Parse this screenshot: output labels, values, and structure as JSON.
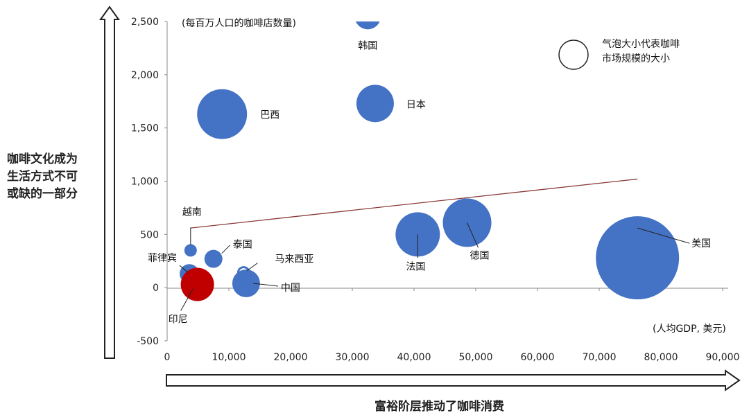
{
  "chart_data": {
    "type": "scatter",
    "title": "",
    "ylabel_note": "(每百万人口的咖啡店数量)",
    "xlabel_note": "(人均GDP, 美元)",
    "xlim": [
      0,
      90000
    ],
    "ylim": [
      -500,
      2500
    ],
    "x_ticks": [
      "0",
      "10,000",
      "20,000",
      "30,000",
      "40,000",
      "50,000",
      "60,000",
      "70,000",
      "80,000",
      "90,000"
    ],
    "y_ticks": [
      "2,500",
      "2,000",
      "1,500",
      "1,000",
      "500",
      "0",
      "-500"
    ],
    "size_legend": {
      "text_line1": "气泡大小代表咖啡",
      "text_line2": "市场规模的大小"
    },
    "points": [
      {
        "label": "韩国",
        "x": 32500,
        "y": 2550,
        "size": 19,
        "color": "#4472C4"
      },
      {
        "label": "日本",
        "x": 33700,
        "y": 1730,
        "size": 27,
        "color": "#4472C4"
      },
      {
        "label": "巴西",
        "x": 8900,
        "y": 1630,
        "size": 36,
        "color": "#4472C4"
      },
      {
        "label": "越南",
        "x": 3800,
        "y": 350,
        "size": 9,
        "color": "#4472C4"
      },
      {
        "label": "泰国",
        "x": 7500,
        "y": 270,
        "size": 13,
        "color": "#4472C4"
      },
      {
        "label": "菲律宾",
        "x": 3600,
        "y": 130,
        "size": 14,
        "color": "#4472C4"
      },
      {
        "label": "马来西亚",
        "x": 12400,
        "y": 140,
        "size": 8,
        "color": "#ffffff"
      },
      {
        "label": "中国",
        "x": 12800,
        "y": 40,
        "size": 20,
        "color": "#4472C4"
      },
      {
        "label": "印尼",
        "x": 4900,
        "y": 30,
        "size": 24,
        "color": "#C00000"
      },
      {
        "label": "法国",
        "x": 40600,
        "y": 500,
        "size": 32,
        "color": "#4472C4"
      },
      {
        "label": "德国",
        "x": 48600,
        "y": 610,
        "size": 35,
        "color": "#4472C4"
      },
      {
        "label": "美国",
        "x": 76200,
        "y": 280,
        "size": 60,
        "color": "#4472C4"
      }
    ],
    "trendline": {
      "x": [
        3800,
        76200
      ],
      "y": [
        560,
        1020
      ],
      "color": "#8B3A3A"
    }
  },
  "axis_titles": {
    "y_line1": "咖啡文化成为",
    "y_line2": "生活方式不可",
    "y_line3": "或缺的一部分",
    "x": "富裕阶层推动了咖啡消费"
  }
}
